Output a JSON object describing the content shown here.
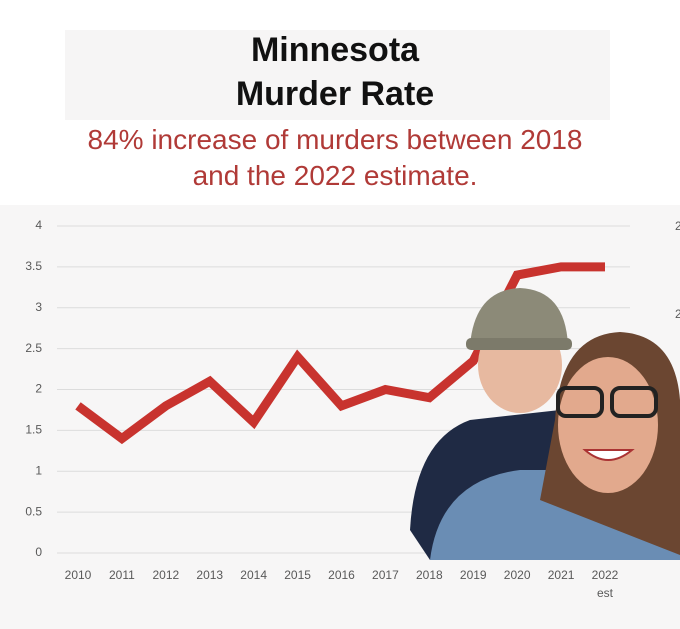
{
  "chart_data": {
    "type": "line",
    "title": "Minnesota Murder Rate",
    "subtitle": "84% increase of murders between 2018 and the 2022 estimate.",
    "categories": [
      "2010",
      "2011",
      "2012",
      "2013",
      "2014",
      "2015",
      "2016",
      "2017",
      "2018",
      "2019",
      "2020",
      "2021",
      "2022 est"
    ],
    "values": [
      1.8,
      1.4,
      1.8,
      2.1,
      1.6,
      2.4,
      1.8,
      2.0,
      1.9,
      2.35,
      3.4,
      3.5,
      3.5
    ],
    "color": "#c8332e",
    "ylim": [
      0,
      4
    ],
    "yticks": [
      0,
      0.5,
      1,
      1.5,
      2,
      2.5,
      3,
      3.5,
      4
    ],
    "grid": true,
    "edge_fragments": [
      "2",
      "2"
    ]
  }
}
